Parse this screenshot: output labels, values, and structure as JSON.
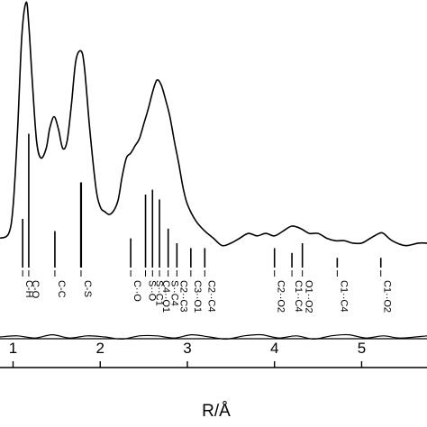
{
  "chart_data": {
    "type": "line",
    "xlabel": "R/Å",
    "xlim": [
      0.85,
      5.75
    ],
    "x_ticks": [
      "1",
      "2",
      "3",
      "4",
      "5"
    ],
    "x_tick_values": [
      1,
      2,
      3,
      4,
      5
    ],
    "grid": false,
    "series": [
      {
        "x": [
          0.85,
          0.95,
          1.0,
          1.05,
          1.1,
          1.15,
          1.18,
          1.22,
          1.27,
          1.32,
          1.38,
          1.42,
          1.47,
          1.52,
          1.57,
          1.62,
          1.67,
          1.72,
          1.78,
          1.82,
          1.88,
          1.95,
          2.0,
          2.05,
          2.12,
          2.2,
          2.25,
          2.3,
          2.35,
          2.4,
          2.45,
          2.5,
          2.55,
          2.6,
          2.65,
          2.7,
          2.75,
          2.8,
          2.85,
          2.9,
          2.95,
          3.0,
          3.1,
          3.2,
          3.3,
          3.4,
          3.5,
          3.6,
          3.7,
          3.8,
          3.9,
          4.0,
          4.1,
          4.2,
          4.3,
          4.4,
          4.5,
          4.6,
          4.7,
          4.8,
          4.9,
          5.0,
          5.1,
          5.2,
          5.25,
          5.35,
          5.5,
          5.65,
          5.75
        ],
        "y": [
          0.05,
          0.07,
          0.18,
          0.48,
          0.88,
          1.02,
          0.93,
          0.7,
          0.45,
          0.38,
          0.42,
          0.5,
          0.55,
          0.5,
          0.42,
          0.45,
          0.6,
          0.78,
          0.82,
          0.75,
          0.5,
          0.26,
          0.18,
          0.16,
          0.15,
          0.2,
          0.3,
          0.38,
          0.4,
          0.43,
          0.46,
          0.52,
          0.58,
          0.65,
          0.7,
          0.68,
          0.62,
          0.55,
          0.45,
          0.36,
          0.26,
          0.19,
          0.12,
          0.08,
          0.05,
          0.02,
          0.03,
          0.05,
          0.07,
          0.06,
          0.07,
          0.06,
          0.08,
          0.1,
          0.09,
          0.07,
          0.07,
          0.05,
          0.04,
          0.04,
          0.03,
          0.03,
          0.05,
          0.07,
          0.07,
          0.04,
          0.02,
          0.03,
          0.03
        ]
      },
      {
        "x": [
          0.85,
          1.05,
          1.25,
          1.45,
          1.65,
          1.85,
          2.05,
          2.25,
          2.45,
          2.65,
          2.85,
          3.05,
          3.25,
          3.45,
          3.65,
          3.85,
          4.05,
          4.25,
          4.45,
          4.65,
          4.85,
          5.05,
          5.25,
          5.45,
          5.75
        ],
        "y": [
          0.0,
          0.01,
          -0.01,
          0.02,
          -0.01,
          0.01,
          0.0,
          -0.02,
          0.01,
          0.01,
          -0.01,
          0.02,
          0.0,
          -0.02,
          0.01,
          0.02,
          -0.01,
          0.01,
          -0.02,
          0.01,
          0.02,
          -0.01,
          0.01,
          -0.01,
          0.01
        ]
      },
      {
        "x": [
          0.85,
          5.75
        ],
        "y": [
          0.0,
          0.0
        ]
      }
    ],
    "bond_markers": [
      {
        "label": "C-H",
        "r": 1.11,
        "height": 0.2
      },
      {
        "label": "C-O",
        "r": 1.18,
        "height": 0.55
      },
      {
        "label": "C-C",
        "r": 1.48,
        "height": 0.15
      },
      {
        "label": "C-S",
        "r": 1.78,
        "height": 0.35
      },
      {
        "label": "C··O",
        "r": 2.35,
        "height": 0.12
      },
      {
        "label": "S··O",
        "r": 2.52,
        "height": 0.3
      },
      {
        "label": "S··C1",
        "r": 2.6,
        "height": 0.32
      },
      {
        "label": "C4··O1",
        "r": 2.68,
        "height": 0.28
      },
      {
        "label": "S··C4",
        "r": 2.78,
        "height": 0.16
      },
      {
        "label": "C2··C3",
        "r": 2.88,
        "height": 0.1
      },
      {
        "label": "C3··O1",
        "r": 3.04,
        "height": 0.08
      },
      {
        "label": "C2··C4",
        "r": 3.2,
        "height": 0.08
      },
      {
        "label": "C2··O2",
        "r": 4.0,
        "height": 0.08
      },
      {
        "label": "C1··C4",
        "r": 4.2,
        "height": 0.06
      },
      {
        "label": "O1··O2",
        "r": 4.32,
        "height": 0.1
      },
      {
        "label": "C1··C4",
        "r": 4.72,
        "height": 0.04
      },
      {
        "label": "C1··O2",
        "r": 5.22,
        "height": 0.04
      }
    ]
  }
}
